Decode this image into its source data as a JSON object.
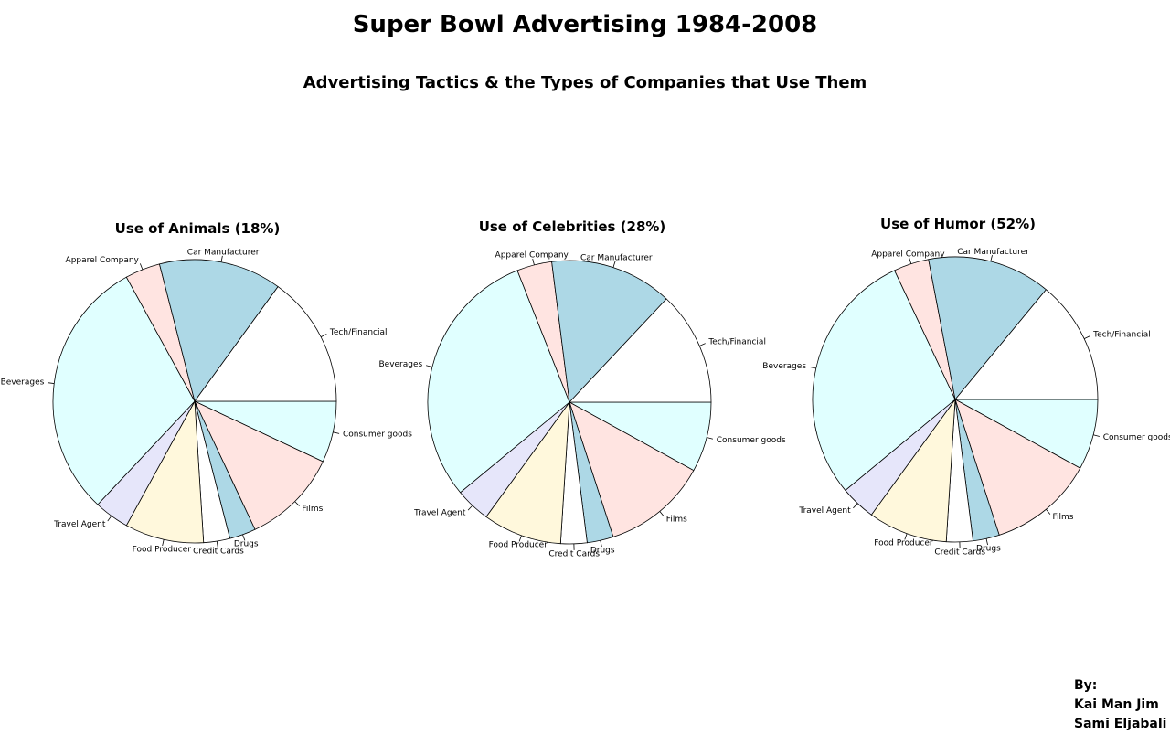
{
  "title": "Super Bowl Advertising 1984-2008",
  "subtitle": "Advertising Tactics & the Types of Companies that Use Them",
  "credits": {
    "heading": "By:",
    "authors": [
      "Kai Man Jim",
      "Sami Eljabali"
    ]
  },
  "colors": {
    "lightblue": "#add8e6",
    "mistyrose": "#ffe4e1",
    "lightcyan": "#e0ffff",
    "lavender": "#e6e6fa",
    "cornsilk": "#fff8dc",
    "white": "#ffffff",
    "outline": "#000000"
  },
  "chart_data": [
    {
      "type": "pie",
      "title": "Use of Animals (18%)",
      "categories": [
        "Consumer goods",
        "Films",
        "Drugs",
        "Credit Cards",
        "Food Producer",
        "Travel Agent",
        "Beverages",
        "Apparel Company",
        "Car Manufacturer",
        "Tech/Financial"
      ],
      "values": [
        7,
        11,
        3,
        3,
        9,
        4,
        30,
        4,
        14,
        15
      ],
      "slice_colors": [
        "#e0ffff",
        "#ffe4e1",
        "#add8e6",
        "#ffffff",
        "#fff8dc",
        "#e6e6fa",
        "#e0ffff",
        "#ffe4e1",
        "#add8e6",
        "#ffffff"
      ],
      "start_angle_deg": 0,
      "direction": "clockwise"
    },
    {
      "type": "pie",
      "title": "Use of Celebrities (28%)",
      "categories": [
        "Consumer goods",
        "Films",
        "Drugs",
        "Credit Cards",
        "Food Producer",
        "Travel Agent",
        "Beverages",
        "Apparel Company",
        "Car Manufacturer",
        "Tech/Financial"
      ],
      "values": [
        8,
        12,
        3,
        3,
        9,
        4,
        30,
        4,
        14,
        13
      ],
      "slice_colors": [
        "#e0ffff",
        "#ffe4e1",
        "#add8e6",
        "#ffffff",
        "#fff8dc",
        "#e6e6fa",
        "#e0ffff",
        "#ffe4e1",
        "#add8e6",
        "#ffffff"
      ],
      "start_angle_deg": 0,
      "direction": "clockwise"
    },
    {
      "type": "pie",
      "title": "Use of Humor (52%)",
      "categories": [
        "Consumer goods",
        "Films",
        "Drugs",
        "Credit Cards",
        "Food Producer",
        "Travel Agent",
        "Beverages",
        "Apparel Company",
        "Car Manufacturer",
        "Tech/Financial"
      ],
      "values": [
        8,
        12,
        3,
        3,
        9,
        4,
        29,
        4,
        14,
        14
      ],
      "slice_colors": [
        "#e0ffff",
        "#ffe4e1",
        "#add8e6",
        "#ffffff",
        "#fff8dc",
        "#e6e6fa",
        "#e0ffff",
        "#ffe4e1",
        "#add8e6",
        "#ffffff"
      ],
      "start_angle_deg": 0,
      "direction": "clockwise"
    }
  ]
}
